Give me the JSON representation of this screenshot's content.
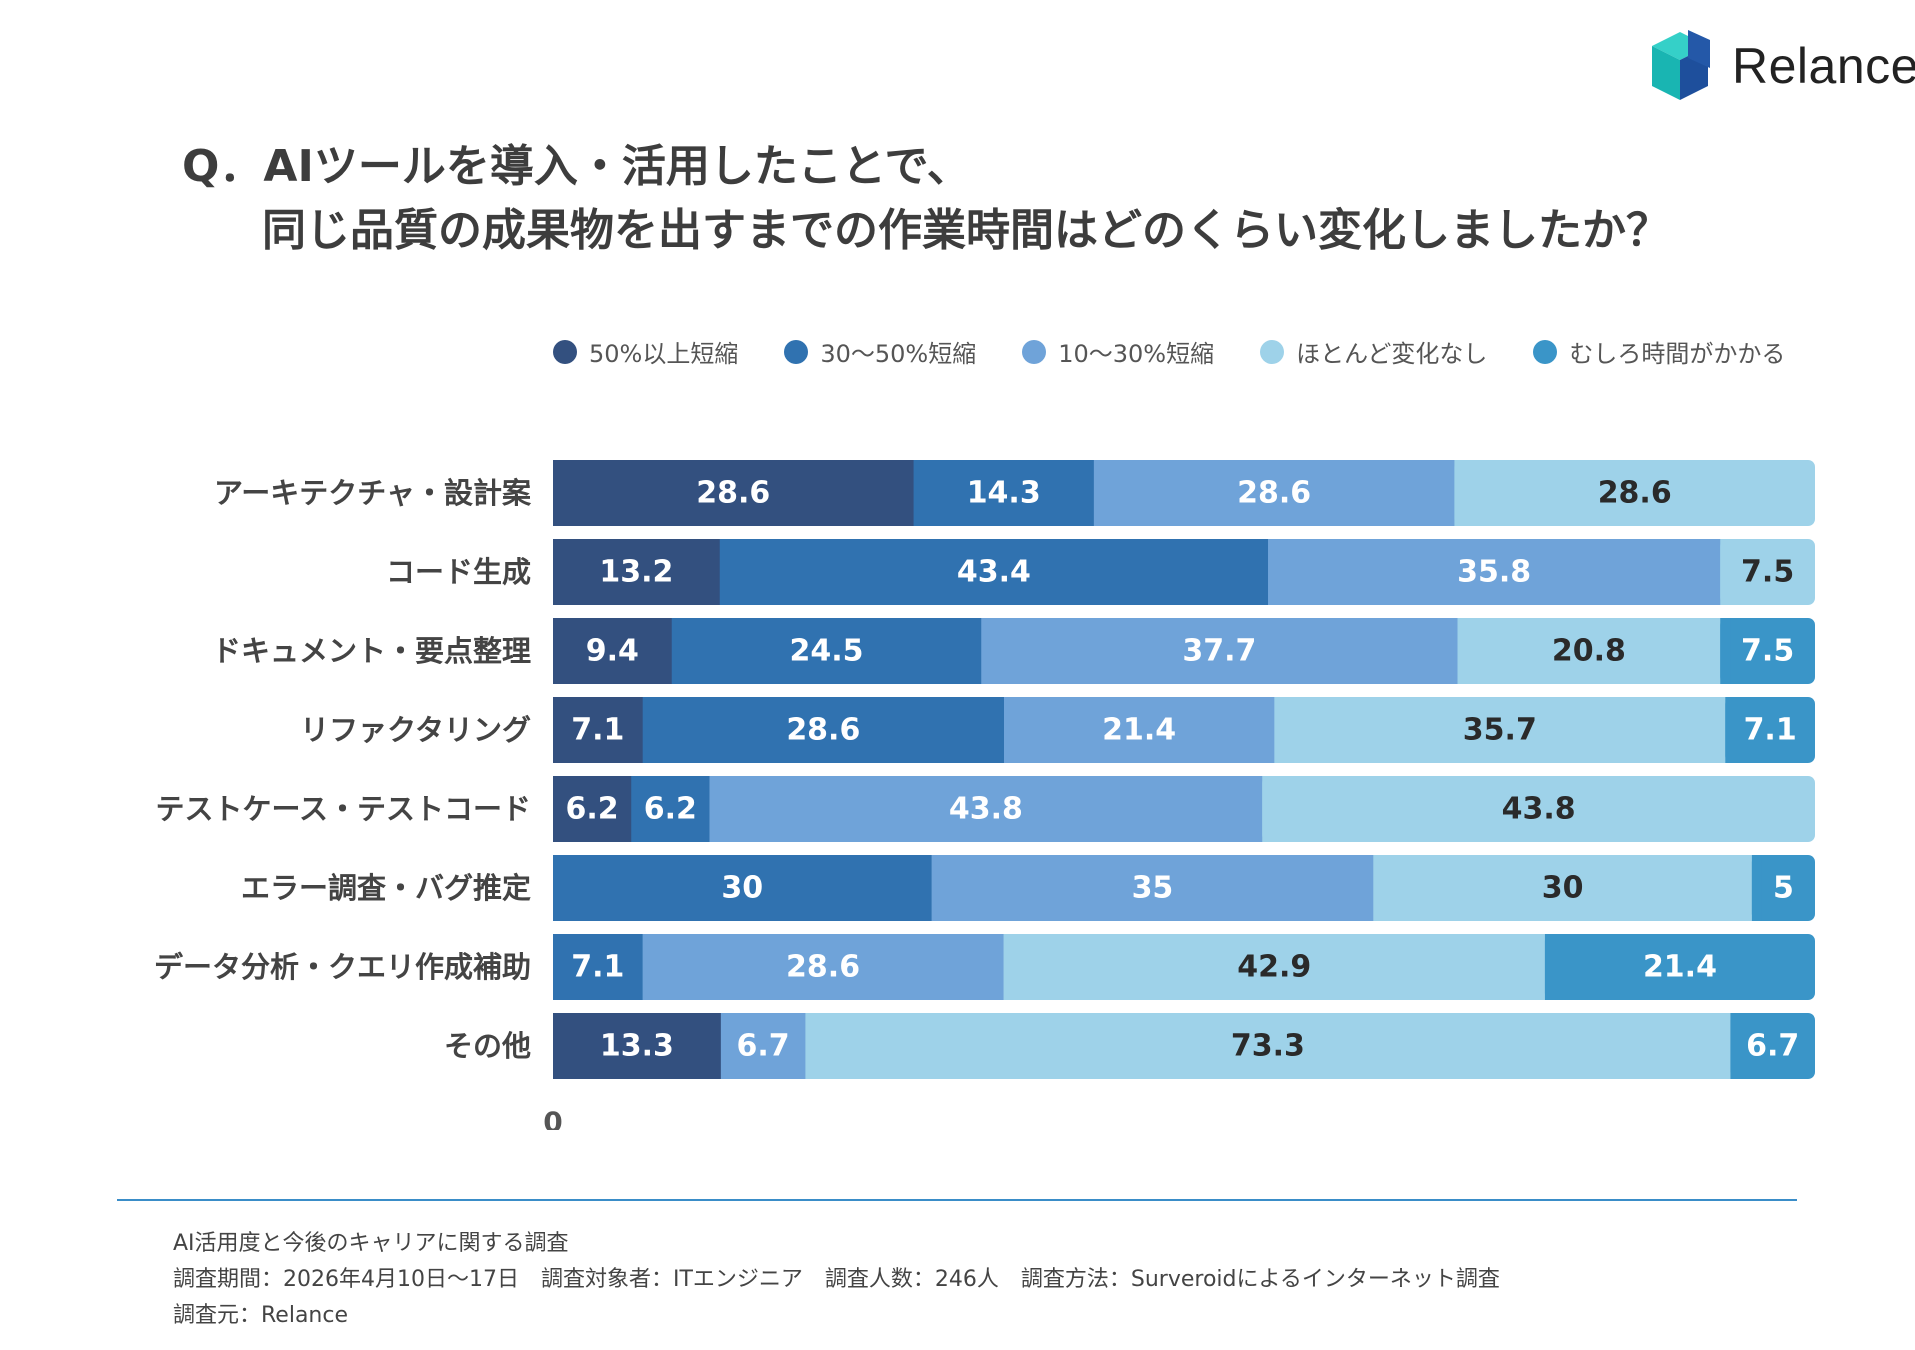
{
  "brand": {
    "name": "Relance",
    "logo_icon": "cube-logo-icon"
  },
  "title": {
    "line1": "Q．AIツールを導入・活用したことで、",
    "line2": "同じ品質の成果物を出すまでの作業時間はどのくらい変化しましたか？"
  },
  "colors": [
    "#33507f",
    "#3072b0",
    "#6fa3d9",
    "#9ed2e9",
    "#3a95c8"
  ],
  "chart_data": {
    "type": "bar",
    "orientation": "horizontal",
    "stacked": true,
    "title": "",
    "xlabel": "",
    "ylabel": "",
    "xlim": [
      0,
      100
    ],
    "x_tick_labels": [
      "0"
    ],
    "grid": false,
    "legend_position": "top",
    "categories": [
      "アーキテクチャ・設計案",
      "コード生成",
      "ドキュメント・要点整理",
      "リファクタリング",
      "テストケース・テストコード",
      "エラー調査・バグ推定",
      "データ分析・クエリ作成補助",
      "その他"
    ],
    "series": [
      {
        "name": "50%以上短縮",
        "color": "#33507f",
        "values": [
          28.6,
          13.2,
          9.4,
          7.1,
          6.2,
          0,
          0,
          13.3
        ]
      },
      {
        "name": "30～50%短縮",
        "color": "#3072b0",
        "values": [
          14.3,
          43.4,
          24.5,
          28.6,
          6.2,
          30,
          7.1,
          0
        ]
      },
      {
        "name": "10～30%短縮",
        "color": "#6fa3d9",
        "values": [
          28.6,
          35.8,
          37.7,
          21.4,
          43.8,
          35,
          28.6,
          6.7
        ]
      },
      {
        "name": "ほとんど変化なし",
        "color": "#9ed2e9",
        "values": [
          28.6,
          7.5,
          20.8,
          35.7,
          43.8,
          30,
          42.9,
          73.3
        ]
      },
      {
        "name": "むしろ時間がかかる",
        "color": "#3a95c8",
        "values": [
          0,
          0,
          7.5,
          7.1,
          0,
          5,
          21.4,
          6.7
        ]
      }
    ]
  },
  "footer": {
    "line1": "AI活用度と今後のキャリアに関する調査",
    "line2": "調査期間：2026年4月10日～17日　調査対象者：ITエンジニア　調査人数：246人　調査方法：Surveroidによるインターネット調査",
    "line3": "調査元：Relance"
  }
}
